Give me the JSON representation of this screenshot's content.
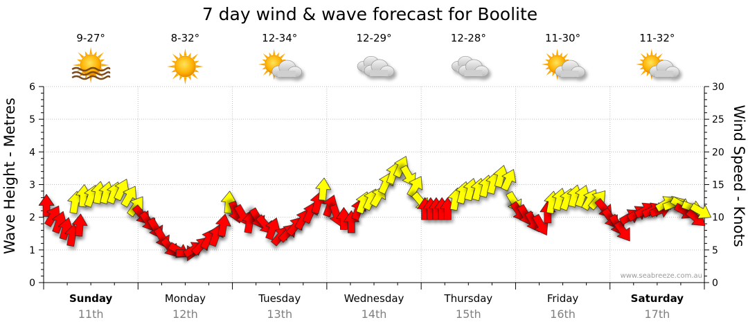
{
  "colors": {
    "wind_strong": "#ff0000",
    "wind_moderate": "#ffff00",
    "weather_sun": "#ffb400",
    "weather_cloud": "#cfcfcf"
  },
  "chart_data": {
    "type": "line",
    "title": "7 day wind & wave forecast for Boolite",
    "ylabel_left": "Wave Height - Metres",
    "ylabel_right": "Wind Speed - Knots",
    "ylim_left": [
      0,
      6
    ],
    "ylim_right": [
      0,
      30
    ],
    "yticks_left": [
      "0",
      "1",
      "2",
      "3",
      "4",
      "5",
      "6"
    ],
    "yticks_right": [
      "0",
      "5",
      "10",
      "15",
      "20",
      "25",
      "30"
    ],
    "grid": true,
    "watermark": "www.seabreeze.com.au",
    "days": [
      {
        "name": "Sunday",
        "date": "11th",
        "bold": true,
        "temp": "9-27°",
        "weather": "sun-haze-icon"
      },
      {
        "name": "Monday",
        "date": "12th",
        "bold": false,
        "temp": "8-32°",
        "weather": "sun-icon"
      },
      {
        "name": "Tuesday",
        "date": "13th",
        "bold": false,
        "temp": "12-34°",
        "weather": "partly-cloudy-icon"
      },
      {
        "name": "Wednesday",
        "date": "14th",
        "bold": false,
        "temp": "12-29°",
        "weather": "cloudy-icon"
      },
      {
        "name": "Thursday",
        "date": "15th",
        "bold": false,
        "temp": "12-28°",
        "weather": "cloudy-icon"
      },
      {
        "name": "Friday",
        "date": "16th",
        "bold": false,
        "temp": "11-30°",
        "weather": "partly-cloudy-icon"
      },
      {
        "name": "Saturday",
        "date": "17th",
        "bold": true,
        "temp": "11-32°",
        "weather": "partly-cloudy-icon"
      }
    ],
    "wind_series": {
      "name": "",
      "unit": "knots",
      "points": [
        {
          "t": 0.03,
          "speed": 11.5,
          "dir": 0,
          "level": "strong"
        },
        {
          "t": 0.09,
          "speed": 10,
          "dir": 30,
          "level": "strong"
        },
        {
          "t": 0.16,
          "speed": 9,
          "dir": 20,
          "level": "strong"
        },
        {
          "t": 0.23,
          "speed": 8,
          "dir": 15,
          "level": "strong"
        },
        {
          "t": 0.3,
          "speed": 7,
          "dir": 10,
          "level": "strong"
        },
        {
          "t": 0.38,
          "speed": 8.5,
          "dir": 5,
          "level": "strong"
        },
        {
          "t": 0.33,
          "speed": 12,
          "dir": 10,
          "level": "moderate"
        },
        {
          "t": 0.42,
          "speed": 13,
          "dir": 5,
          "level": "moderate"
        },
        {
          "t": 0.5,
          "speed": 13,
          "dir": 20,
          "level": "moderate"
        },
        {
          "t": 0.58,
          "speed": 13.5,
          "dir": 10,
          "level": "moderate"
        },
        {
          "t": 0.66,
          "speed": 13.5,
          "dir": 15,
          "level": "moderate"
        },
        {
          "t": 0.74,
          "speed": 13.5,
          "dir": 20,
          "level": "moderate"
        },
        {
          "t": 0.82,
          "speed": 14,
          "dir": 25,
          "level": "moderate"
        },
        {
          "t": 0.9,
          "speed": 13,
          "dir": 30,
          "level": "moderate"
        },
        {
          "t": 0.97,
          "speed": 11.5,
          "dir": 35,
          "level": "moderate"
        },
        {
          "t": 1.03,
          "speed": 10.5,
          "dir": 140,
          "level": "strong"
        },
        {
          "t": 1.1,
          "speed": 9.5,
          "dir": 145,
          "level": "strong"
        },
        {
          "t": 1.18,
          "speed": 8.5,
          "dir": 150,
          "level": "strong"
        },
        {
          "t": 1.25,
          "speed": 7,
          "dir": 150,
          "level": "strong"
        },
        {
          "t": 1.33,
          "speed": 5.5,
          "dir": 140,
          "level": "strong"
        },
        {
          "t": 1.42,
          "speed": 5,
          "dir": 120,
          "level": "strong"
        },
        {
          "t": 1.5,
          "speed": 4.5,
          "dir": 90,
          "level": "strong"
        },
        {
          "t": 1.58,
          "speed": 5,
          "dir": 60,
          "level": "strong"
        },
        {
          "t": 1.66,
          "speed": 5.5,
          "dir": 45,
          "level": "strong"
        },
        {
          "t": 1.74,
          "speed": 6.5,
          "dir": 30,
          "level": "strong"
        },
        {
          "t": 1.82,
          "speed": 7,
          "dir": 20,
          "level": "strong"
        },
        {
          "t": 1.9,
          "speed": 8.5,
          "dir": 10,
          "level": "strong"
        },
        {
          "t": 1.96,
          "speed": 12,
          "dir": 5,
          "level": "moderate"
        },
        {
          "t": 2.03,
          "speed": 11,
          "dir": 160,
          "level": "strong"
        },
        {
          "t": 2.1,
          "speed": 10.5,
          "dir": 150,
          "level": "strong"
        },
        {
          "t": 2.18,
          "speed": 9,
          "dir": 10,
          "level": "strong"
        },
        {
          "t": 2.26,
          "speed": 10,
          "dir": 150,
          "level": "strong"
        },
        {
          "t": 2.34,
          "speed": 9,
          "dir": 140,
          "level": "strong"
        },
        {
          "t": 2.42,
          "speed": 8,
          "dir": 20,
          "level": "strong"
        },
        {
          "t": 2.5,
          "speed": 7,
          "dir": 40,
          "level": "strong"
        },
        {
          "t": 2.58,
          "speed": 7.5,
          "dir": 45,
          "level": "strong"
        },
        {
          "t": 2.66,
          "speed": 8.5,
          "dir": 40,
          "level": "strong"
        },
        {
          "t": 2.74,
          "speed": 9.5,
          "dir": 30,
          "level": "strong"
        },
        {
          "t": 2.82,
          "speed": 10.5,
          "dir": 25,
          "level": "strong"
        },
        {
          "t": 2.9,
          "speed": 12,
          "dir": 15,
          "level": "strong"
        },
        {
          "t": 2.96,
          "speed": 14,
          "dir": 5,
          "level": "moderate"
        },
        {
          "t": 3.03,
          "speed": 11.5,
          "dir": 20,
          "level": "strong"
        },
        {
          "t": 3.1,
          "speed": 10.5,
          "dir": 160,
          "level": "strong"
        },
        {
          "t": 3.18,
          "speed": 9.5,
          "dir": 0,
          "level": "strong"
        },
        {
          "t": 3.26,
          "speed": 9,
          "dir": 0,
          "level": "strong"
        },
        {
          "t": 3.33,
          "speed": 11,
          "dir": 20,
          "level": "strong"
        },
        {
          "t": 3.38,
          "speed": 12,
          "dir": 20,
          "level": "moderate"
        },
        {
          "t": 3.46,
          "speed": 12.5,
          "dir": 25,
          "level": "moderate"
        },
        {
          "t": 3.54,
          "speed": 13,
          "dir": 30,
          "level": "moderate"
        },
        {
          "t": 3.62,
          "speed": 15,
          "dir": 25,
          "level": "moderate"
        },
        {
          "t": 3.7,
          "speed": 16.5,
          "dir": 20,
          "level": "moderate"
        },
        {
          "t": 3.78,
          "speed": 17.5,
          "dir": 25,
          "level": "moderate"
        },
        {
          "t": 3.86,
          "speed": 16.5,
          "dir": 150,
          "level": "moderate"
        },
        {
          "t": 3.93,
          "speed": 14.5,
          "dir": 30,
          "level": "moderate"
        },
        {
          "t": 3.99,
          "speed": 12.5,
          "dir": 140,
          "level": "moderate"
        },
        {
          "t": 4.04,
          "speed": 11,
          "dir": 0,
          "level": "strong"
        },
        {
          "t": 4.1,
          "speed": 11,
          "dir": 0,
          "level": "strong"
        },
        {
          "t": 4.16,
          "speed": 11,
          "dir": 0,
          "level": "strong"
        },
        {
          "t": 4.22,
          "speed": 11,
          "dir": 0,
          "level": "strong"
        },
        {
          "t": 4.28,
          "speed": 11,
          "dir": 0,
          "level": "strong"
        },
        {
          "t": 4.36,
          "speed": 12.5,
          "dir": 10,
          "level": "moderate"
        },
        {
          "t": 4.44,
          "speed": 13.5,
          "dir": 15,
          "level": "moderate"
        },
        {
          "t": 4.52,
          "speed": 14,
          "dir": 15,
          "level": "moderate"
        },
        {
          "t": 4.6,
          "speed": 14,
          "dir": 15,
          "level": "moderate"
        },
        {
          "t": 4.68,
          "speed": 14.5,
          "dir": 15,
          "level": "moderate"
        },
        {
          "t": 4.76,
          "speed": 15,
          "dir": 15,
          "level": "moderate"
        },
        {
          "t": 4.84,
          "speed": 16,
          "dir": 15,
          "level": "moderate"
        },
        {
          "t": 4.92,
          "speed": 15.5,
          "dir": 25,
          "level": "moderate"
        },
        {
          "t": 4.98,
          "speed": 12.5,
          "dir": 150,
          "level": "moderate"
        },
        {
          "t": 5.03,
          "speed": 11,
          "dir": 145,
          "level": "strong"
        },
        {
          "t": 5.1,
          "speed": 10.5,
          "dir": 150,
          "level": "strong"
        },
        {
          "t": 5.18,
          "speed": 9.5,
          "dir": 150,
          "level": "strong"
        },
        {
          "t": 5.26,
          "speed": 9,
          "dir": 150,
          "level": "strong"
        },
        {
          "t": 5.34,
          "speed": 10.5,
          "dir": 0,
          "level": "strong"
        },
        {
          "t": 5.38,
          "speed": 12,
          "dir": 10,
          "level": "moderate"
        },
        {
          "t": 5.46,
          "speed": 12.5,
          "dir": 15,
          "level": "moderate"
        },
        {
          "t": 5.54,
          "speed": 12.5,
          "dir": 20,
          "level": "moderate"
        },
        {
          "t": 5.62,
          "speed": 13,
          "dir": 15,
          "level": "moderate"
        },
        {
          "t": 5.7,
          "speed": 13,
          "dir": 20,
          "level": "moderate"
        },
        {
          "t": 5.78,
          "speed": 12.5,
          "dir": 30,
          "level": "moderate"
        },
        {
          "t": 5.86,
          "speed": 12.5,
          "dir": 40,
          "level": "moderate"
        },
        {
          "t": 5.93,
          "speed": 11.5,
          "dir": 140,
          "level": "strong"
        },
        {
          "t": 6.0,
          "speed": 10,
          "dir": 145,
          "level": "strong"
        },
        {
          "t": 6.07,
          "speed": 9,
          "dir": 150,
          "level": "strong"
        },
        {
          "t": 6.13,
          "speed": 8,
          "dir": 145,
          "level": "strong"
        },
        {
          "t": 6.2,
          "speed": 10,
          "dir": 60,
          "level": "strong"
        },
        {
          "t": 6.28,
          "speed": 10.5,
          "dir": 60,
          "level": "strong"
        },
        {
          "t": 6.36,
          "speed": 11,
          "dir": 60,
          "level": "strong"
        },
        {
          "t": 6.44,
          "speed": 11,
          "dir": 65,
          "level": "strong"
        },
        {
          "t": 6.52,
          "speed": 11,
          "dir": 70,
          "level": "strong"
        },
        {
          "t": 6.58,
          "speed": 12,
          "dir": 60,
          "level": "moderate"
        },
        {
          "t": 6.66,
          "speed": 12,
          "dir": 70,
          "level": "moderate"
        },
        {
          "t": 6.74,
          "speed": 12,
          "dir": 120,
          "level": "moderate"
        },
        {
          "t": 6.78,
          "speed": 11,
          "dir": 120,
          "level": "strong"
        },
        {
          "t": 6.86,
          "speed": 11.5,
          "dir": 110,
          "level": "moderate"
        },
        {
          "t": 6.9,
          "speed": 10,
          "dir": 130,
          "level": "strong"
        },
        {
          "t": 6.95,
          "speed": 11,
          "dir": 120,
          "level": "moderate"
        }
      ]
    }
  }
}
